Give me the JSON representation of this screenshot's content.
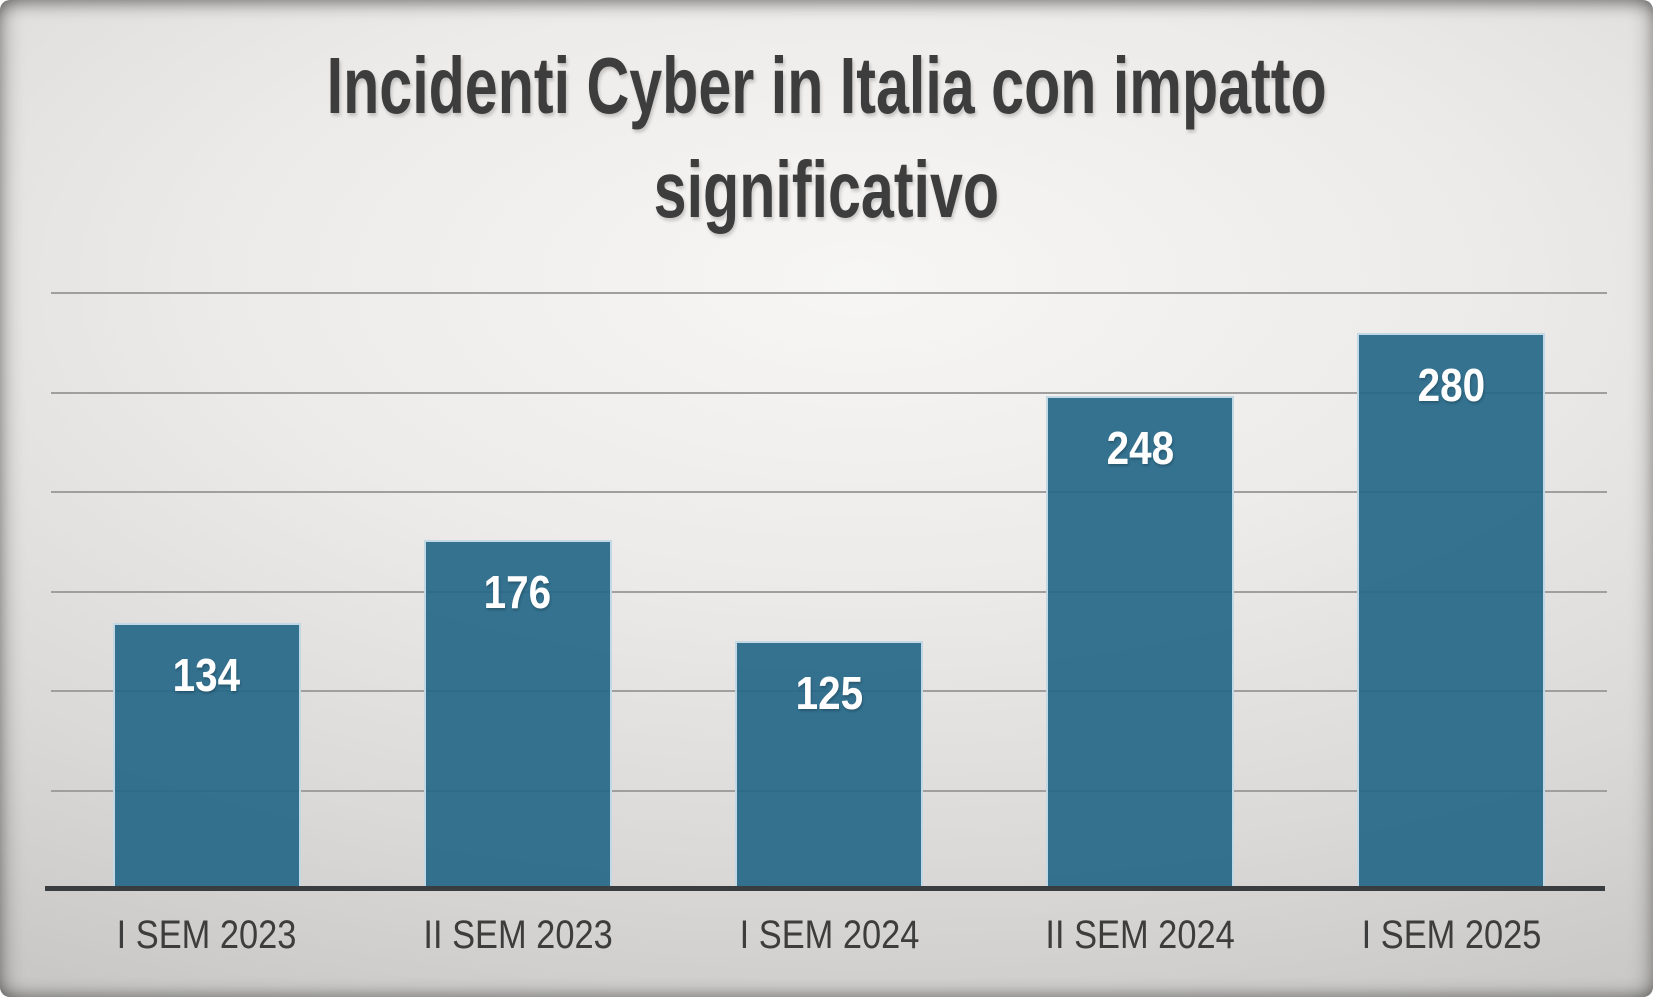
{
  "title": {
    "line1": "Incidenti Cyber in Italia con impatto",
    "line2": "significativo"
  },
  "chart_data": {
    "type": "bar",
    "title": "Incidenti Cyber in Italia con impatto significativo",
    "categories": [
      "I SEM 2023",
      "II SEM 2023",
      "I SEM 2024",
      "II SEM 2024",
      "I SEM 2025"
    ],
    "values": [
      134,
      176,
      125,
      248,
      280
    ],
    "xlabel": "",
    "ylabel": "",
    "ylim": [
      0,
      300
    ],
    "gridline_step": 50,
    "grid": "horizontal",
    "legend": "none",
    "data_labels": "inside-end",
    "colors": {
      "bar_fill": "#2E7090",
      "bar_border": "#D3E4EE",
      "data_label_text": "#FFFFFF",
      "title_text": "#3D3D3D",
      "axis_label_text": "#3D3D3D",
      "gridline": "#9F9F9F",
      "axis_line": "#3A3D40",
      "background": "#E4E2E0"
    }
  }
}
